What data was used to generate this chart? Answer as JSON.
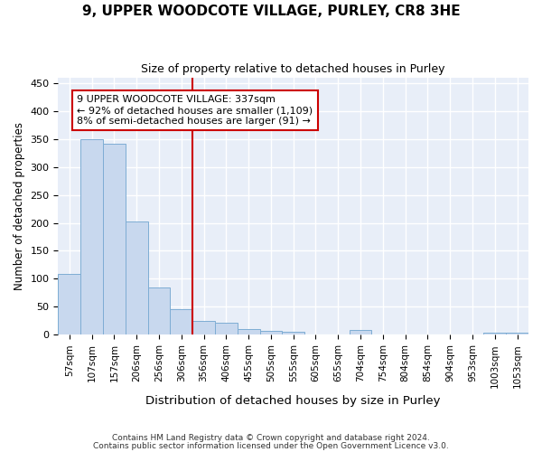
{
  "title": "9, UPPER WOODCOTE VILLAGE, PURLEY, CR8 3HE",
  "subtitle": "Size of property relative to detached houses in Purley",
  "xlabel": "Distribution of detached houses by size in Purley",
  "ylabel": "Number of detached properties",
  "categories": [
    "57sqm",
    "107sqm",
    "157sqm",
    "206sqm",
    "256sqm",
    "306sqm",
    "356sqm",
    "406sqm",
    "455sqm",
    "505sqm",
    "555sqm",
    "605sqm",
    "655sqm",
    "704sqm",
    "754sqm",
    "804sqm",
    "854sqm",
    "904sqm",
    "953sqm",
    "1003sqm",
    "1053sqm"
  ],
  "values": [
    109,
    349,
    342,
    202,
    84,
    46,
    24,
    22,
    10,
    7,
    6,
    0,
    0,
    8,
    0,
    0,
    0,
    0,
    0,
    3,
    3
  ],
  "bar_color": "#c8d8ee",
  "bar_edgecolor": "#7eadd4",
  "vline_x": 5.5,
  "vline_color": "#cc0000",
  "annotation_text": "9 UPPER WOODCOTE VILLAGE: 337sqm\n← 92% of detached houses are smaller (1,109)\n8% of semi-detached houses are larger (91) →",
  "annotation_box_color": "#ffffff",
  "annotation_box_edgecolor": "#cc0000",
  "ylim": [
    0,
    460
  ],
  "yticks": [
    0,
    50,
    100,
    150,
    200,
    250,
    300,
    350,
    400,
    450
  ],
  "footer_line1": "Contains HM Land Registry data © Crown copyright and database right 2024.",
  "footer_line2": "Contains public sector information licensed under the Open Government Licence v3.0.",
  "bg_color": "#ffffff",
  "plot_bg_color": "#e8eef8",
  "grid_color": "#ffffff",
  "title_fontsize": 11,
  "subtitle_fontsize": 9
}
